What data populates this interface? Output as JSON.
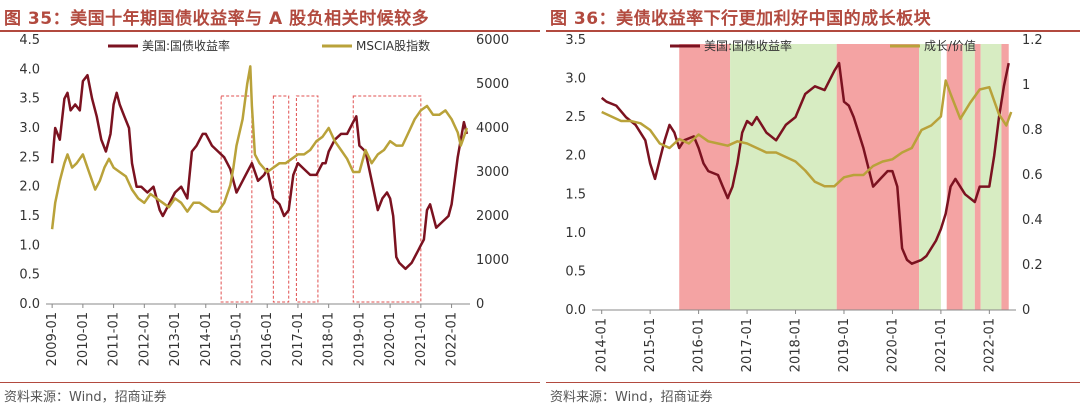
{
  "chart_data": [
    {
      "id": "fig35",
      "type": "line",
      "title": "图 35：美国十年期国债收益率与 A 股负相关时候较多",
      "source": "资料来源：Wind，招商证券",
      "x_tick_labels": [
        "2009-01",
        "2010-01",
        "2011-01",
        "2012-01",
        "2013-01",
        "2014-01",
        "2015-01",
        "2016-01",
        "2017-01",
        "2018-01",
        "2019-01",
        "2020-01",
        "2021-01",
        "2022-01"
      ],
      "xlim": [
        2008.8,
        2022.6
      ],
      "left_axis": {
        "ylim": [
          0,
          4.5
        ],
        "ticks": [
          "0.0",
          "0.5",
          "1.0",
          "1.5",
          "2.0",
          "2.5",
          "3.0",
          "3.5",
          "4.0",
          "4.5"
        ]
      },
      "right_axis": {
        "ylim": [
          0,
          6000
        ],
        "ticks": [
          "0",
          "1000",
          "2000",
          "3000",
          "4000",
          "5000",
          "6000"
        ]
      },
      "series": [
        {
          "name": "美国:国债收益率",
          "axis": "left",
          "color": "#7b1220",
          "x": [
            2009.0,
            2009.1,
            2009.25,
            2009.4,
            2009.5,
            2009.6,
            2009.75,
            2009.9,
            2010.0,
            2010.15,
            2010.3,
            2010.45,
            2010.6,
            2010.75,
            2010.9,
            2011.0,
            2011.1,
            2011.2,
            2011.35,
            2011.5,
            2011.6,
            2011.75,
            2011.9,
            2012.1,
            2012.3,
            2012.5,
            2012.6,
            2012.8,
            2013.0,
            2013.2,
            2013.4,
            2013.55,
            2013.7,
            2013.9,
            2014.0,
            2014.2,
            2014.4,
            2014.6,
            2014.8,
            2015.0,
            2015.1,
            2015.3,
            2015.5,
            2015.7,
            2015.9,
            2016.0,
            2016.2,
            2016.4,
            2016.55,
            2016.7,
            2016.85,
            2017.0,
            2017.2,
            2017.4,
            2017.6,
            2017.8,
            2017.9,
            2018.0,
            2018.2,
            2018.4,
            2018.6,
            2018.8,
            2018.9,
            2019.0,
            2019.2,
            2019.4,
            2019.6,
            2019.75,
            2019.9,
            2020.0,
            2020.1,
            2020.2,
            2020.3,
            2020.5,
            2020.7,
            2020.9,
            2021.0,
            2021.1,
            2021.2,
            2021.3,
            2021.5,
            2021.7,
            2021.9,
            2022.0,
            2022.2,
            2022.4,
            2022.5
          ],
          "values": [
            2.4,
            3.0,
            2.8,
            3.5,
            3.6,
            3.3,
            3.4,
            3.3,
            3.8,
            3.9,
            3.5,
            3.2,
            2.8,
            2.6,
            2.9,
            3.4,
            3.6,
            3.4,
            3.2,
            3.0,
            2.4,
            2.0,
            2.0,
            1.9,
            2.0,
            1.6,
            1.5,
            1.7,
            1.9,
            2.0,
            1.8,
            2.6,
            2.7,
            2.9,
            2.9,
            2.7,
            2.6,
            2.5,
            2.3,
            1.9,
            2.0,
            2.2,
            2.4,
            2.1,
            2.2,
            2.3,
            1.8,
            1.7,
            1.5,
            1.6,
            2.2,
            2.4,
            2.3,
            2.2,
            2.2,
            2.4,
            2.4,
            2.6,
            2.8,
            2.9,
            2.9,
            3.1,
            3.2,
            2.7,
            2.6,
            2.1,
            1.6,
            1.8,
            1.9,
            1.8,
            1.5,
            0.8,
            0.7,
            0.6,
            0.7,
            0.9,
            1.0,
            1.1,
            1.6,
            1.7,
            1.3,
            1.4,
            1.5,
            1.7,
            2.5,
            3.1,
            2.9
          ]
        },
        {
          "name": "MSCIA股指数",
          "axis": "right",
          "color": "#b9a23a",
          "x": [
            2009.0,
            2009.1,
            2009.25,
            2009.4,
            2009.5,
            2009.65,
            2009.8,
            2010.0,
            2010.2,
            2010.4,
            2010.55,
            2010.7,
            2010.85,
            2011.0,
            2011.2,
            2011.4,
            2011.6,
            2011.8,
            2012.0,
            2012.2,
            2012.4,
            2012.6,
            2012.8,
            2013.0,
            2013.2,
            2013.4,
            2013.6,
            2013.8,
            2014.0,
            2014.2,
            2014.4,
            2014.6,
            2014.8,
            2014.9,
            2015.0,
            2015.2,
            2015.35,
            2015.45,
            2015.5,
            2015.6,
            2015.75,
            2016.0,
            2016.2,
            2016.4,
            2016.6,
            2016.8,
            2017.0,
            2017.2,
            2017.4,
            2017.6,
            2017.8,
            2018.0,
            2018.2,
            2018.4,
            2018.6,
            2018.8,
            2019.0,
            2019.2,
            2019.4,
            2019.6,
            2019.8,
            2020.0,
            2020.2,
            2020.4,
            2020.6,
            2020.8,
            2021.0,
            2021.2,
            2021.4,
            2021.6,
            2021.8,
            2022.0,
            2022.2,
            2022.3,
            2022.4,
            2022.5
          ],
          "values": [
            1700,
            2300,
            2800,
            3200,
            3400,
            3100,
            3200,
            3400,
            3000,
            2600,
            2800,
            3100,
            3300,
            3100,
            3000,
            2900,
            2600,
            2400,
            2300,
            2500,
            2400,
            2300,
            2200,
            2400,
            2300,
            2100,
            2300,
            2300,
            2200,
            2100,
            2100,
            2300,
            2700,
            3100,
            3600,
            4200,
            5000,
            5400,
            4500,
            3400,
            3200,
            3000,
            3100,
            3200,
            3200,
            3300,
            3400,
            3400,
            3500,
            3700,
            3800,
            4000,
            3700,
            3500,
            3300,
            3000,
            3000,
            3500,
            3200,
            3400,
            3500,
            3700,
            3600,
            3600,
            3900,
            4200,
            4400,
            4500,
            4300,
            4300,
            4400,
            4200,
            3900,
            3600,
            3800,
            4000
          ]
        }
      ],
      "highlight_spans": [
        [
          2014.5,
          2015.5
        ],
        [
          2016.2,
          2016.7
        ],
        [
          2016.95,
          2017.65
        ],
        [
          2018.8,
          2021.0
        ]
      ]
    },
    {
      "id": "fig36",
      "type": "line",
      "title": "图 36：美债收益率下行更加利好中国的成长板块",
      "source": "资料来源：Wind，招商证券",
      "x_tick_labels": [
        "2014-01",
        "2015-01",
        "2016-01",
        "2017-01",
        "2018-01",
        "2019-01",
        "2020-01",
        "2021-01",
        "2022-01"
      ],
      "xlim": [
        2013.8,
        2022.55
      ],
      "left_axis": {
        "ylim": [
          0,
          3.5
        ],
        "ticks": [
          "0.0",
          "0.5",
          "1.0",
          "1.5",
          "2.0",
          "2.5",
          "3.0",
          "3.5"
        ]
      },
      "right_axis": {
        "ylim": [
          0,
          1.2
        ],
        "ticks": [
          "0",
          "0.2",
          "0.4",
          "0.6",
          "0.8",
          "1",
          "1.2"
        ]
      },
      "series": [
        {
          "name": "美国:国债收益率",
          "axis": "left",
          "color": "#7b1220",
          "x": [
            2014.0,
            2014.1,
            2014.3,
            2014.5,
            2014.7,
            2014.9,
            2015.0,
            2015.1,
            2015.2,
            2015.3,
            2015.4,
            2015.5,
            2015.6,
            2015.7,
            2015.9,
            2016.0,
            2016.1,
            2016.2,
            2016.4,
            2016.5,
            2016.6,
            2016.7,
            2016.8,
            2016.9,
            2017.0,
            2017.1,
            2017.2,
            2017.4,
            2017.6,
            2017.8,
            2018.0,
            2018.2,
            2018.4,
            2018.6,
            2018.8,
            2018.9,
            2019.0,
            2019.1,
            2019.2,
            2019.4,
            2019.6,
            2019.75,
            2019.9,
            2020.0,
            2020.1,
            2020.2,
            2020.3,
            2020.4,
            2020.6,
            2020.7,
            2020.9,
            2021.0,
            2021.1,
            2021.2,
            2021.3,
            2021.5,
            2021.7,
            2021.8,
            2022.0,
            2022.1,
            2022.2,
            2022.3,
            2022.4
          ],
          "values": [
            2.75,
            2.7,
            2.65,
            2.5,
            2.4,
            2.2,
            1.9,
            1.7,
            1.95,
            2.2,
            2.4,
            2.3,
            2.1,
            2.2,
            2.25,
            2.1,
            1.9,
            1.8,
            1.75,
            1.6,
            1.45,
            1.6,
            1.9,
            2.3,
            2.45,
            2.4,
            2.5,
            2.3,
            2.2,
            2.4,
            2.5,
            2.8,
            2.9,
            2.85,
            3.1,
            3.2,
            2.7,
            2.65,
            2.5,
            2.1,
            1.6,
            1.7,
            1.8,
            1.8,
            1.6,
            0.8,
            0.65,
            0.6,
            0.65,
            0.7,
            0.9,
            1.05,
            1.25,
            1.6,
            1.7,
            1.5,
            1.4,
            1.6,
            1.6,
            2.0,
            2.5,
            2.9,
            3.2
          ]
        },
        {
          "name": "成长/价值",
          "axis": "right",
          "color": "#b9a23a",
          "x": [
            2014.0,
            2014.2,
            2014.4,
            2014.6,
            2014.8,
            2015.0,
            2015.2,
            2015.4,
            2015.6,
            2015.8,
            2016.0,
            2016.2,
            2016.4,
            2016.6,
            2016.8,
            2017.0,
            2017.2,
            2017.4,
            2017.6,
            2017.8,
            2018.0,
            2018.2,
            2018.4,
            2018.6,
            2018.8,
            2019.0,
            2019.2,
            2019.4,
            2019.6,
            2019.8,
            2020.0,
            2020.2,
            2020.4,
            2020.6,
            2020.8,
            2021.0,
            2021.1,
            2021.2,
            2021.4,
            2021.6,
            2021.8,
            2022.0,
            2022.2,
            2022.35,
            2022.45
          ],
          "values": [
            0.88,
            0.86,
            0.84,
            0.84,
            0.83,
            0.8,
            0.74,
            0.72,
            0.76,
            0.74,
            0.78,
            0.75,
            0.74,
            0.73,
            0.75,
            0.74,
            0.72,
            0.7,
            0.7,
            0.68,
            0.66,
            0.62,
            0.57,
            0.55,
            0.55,
            0.59,
            0.6,
            0.6,
            0.64,
            0.66,
            0.67,
            0.7,
            0.72,
            0.8,
            0.82,
            0.86,
            1.02,
            0.96,
            0.85,
            0.92,
            0.98,
            0.99,
            0.87,
            0.82,
            0.88
          ]
        }
      ],
      "shaded_spans": [
        {
          "start": 2015.6,
          "end": 2016.65,
          "color": "#f4a3a3"
        },
        {
          "start": 2016.65,
          "end": 2018.85,
          "color": "#d7ecc2"
        },
        {
          "start": 2018.85,
          "end": 2020.55,
          "color": "#f4a3a3"
        },
        {
          "start": 2020.55,
          "end": 2021.0,
          "color": "#d7ecc2"
        },
        {
          "start": 2021.12,
          "end": 2021.45,
          "color": "#f4a3a3"
        },
        {
          "start": 2021.45,
          "end": 2021.7,
          "color": "#d7ecc2"
        },
        {
          "start": 2021.7,
          "end": 2021.82,
          "color": "#f4a3a3"
        },
        {
          "start": 2021.82,
          "end": 2022.25,
          "color": "#d7ecc2"
        },
        {
          "start": 2022.25,
          "end": 2022.4,
          "color": "#f4a3a3"
        }
      ]
    }
  ]
}
